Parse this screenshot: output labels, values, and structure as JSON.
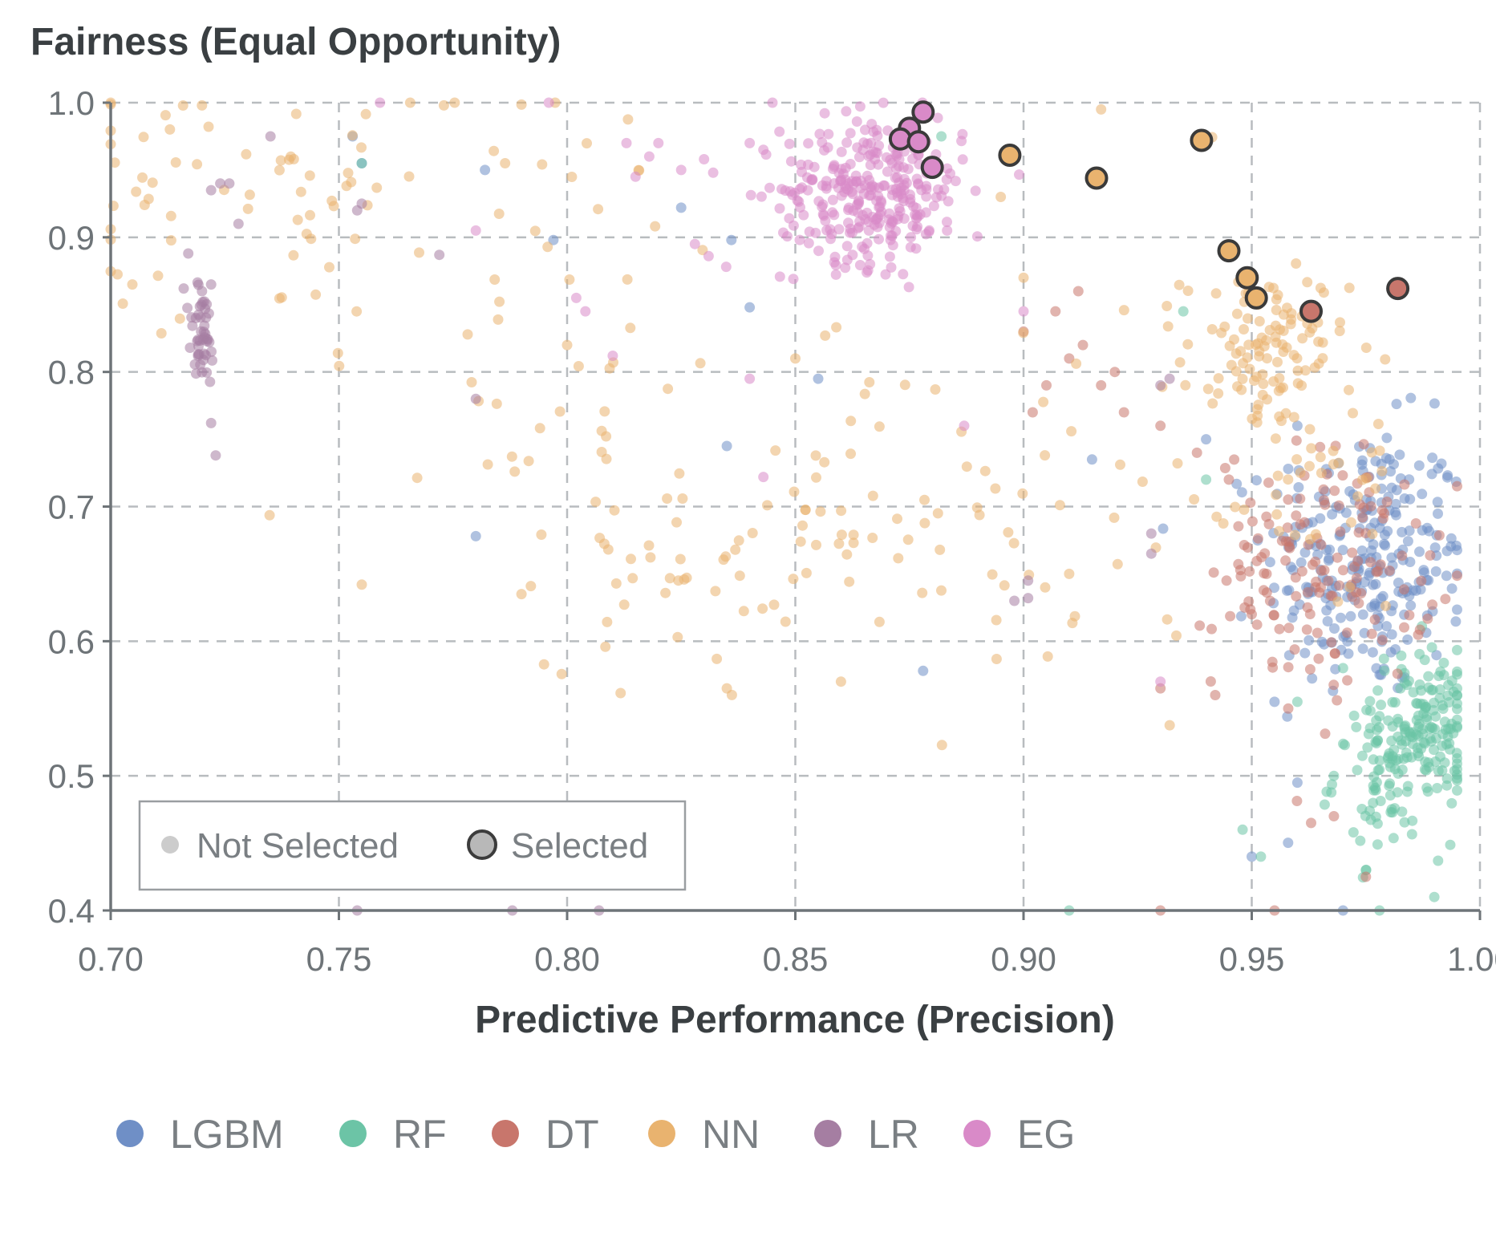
{
  "chart_data": {
    "type": "scatter",
    "title": "Fairness (Equal Opportunity)",
    "xlabel": "Predictive Performance (Precision)",
    "ylabel": "Fairness (Equal Opportunity)",
    "xlim": [
      0.7,
      1.0
    ],
    "ylim": [
      0.4,
      1.0
    ],
    "x_ticks": [
      "0.70",
      "0.75",
      "0.80",
      "0.85",
      "0.90",
      "0.95",
      "1.00"
    ],
    "y_ticks": [
      "1.0",
      "0.9",
      "0.8",
      "0.7",
      "0.6",
      "0.5",
      "0.4"
    ],
    "grid": true,
    "selection_legend": {
      "position": "bottom-left",
      "not_selected": "Not Selected",
      "selected": "Selected"
    },
    "series": [
      {
        "name": "LGBM",
        "color": "#6f8fc6",
        "clusters": [
          {
            "cx": 0.975,
            "cy": 0.66,
            "sx": 0.011,
            "sy": 0.05,
            "n": 260
          }
        ],
        "points": [
          [
            0.753,
            0.975
          ],
          [
            0.755,
            0.955
          ],
          [
            0.782,
            0.95
          ],
          [
            0.797,
            0.898
          ],
          [
            0.825,
            0.922
          ],
          [
            0.836,
            0.898
          ],
          [
            0.84,
            0.848
          ],
          [
            0.855,
            0.795
          ],
          [
            0.835,
            0.745
          ],
          [
            0.915,
            0.735
          ],
          [
            0.958,
            0.728
          ],
          [
            0.955,
            0.555
          ],
          [
            0.96,
            0.495
          ],
          [
            0.95,
            0.44
          ],
          [
            0.97,
            0.4
          ],
          [
            0.78,
            0.678
          ],
          [
            0.878,
            0.578
          ],
          [
            0.94,
            0.75
          ],
          [
            0.96,
            0.76
          ]
        ]
      },
      {
        "name": "RF",
        "color": "#6cc4a6",
        "clusters": [
          {
            "cx": 0.988,
            "cy": 0.535,
            "sx": 0.006,
            "sy": 0.03,
            "n": 150
          },
          {
            "cx": 0.98,
            "cy": 0.5,
            "sx": 0.006,
            "sy": 0.03,
            "n": 70
          }
        ],
        "points": [
          [
            0.755,
            0.955
          ],
          [
            0.882,
            0.975
          ],
          [
            0.91,
            0.4
          ],
          [
            0.94,
            0.72
          ],
          [
            0.948,
            0.46
          ],
          [
            0.952,
            0.44
          ],
          [
            0.968,
            0.5
          ],
          [
            0.975,
            0.43
          ],
          [
            0.978,
            0.4
          ],
          [
            0.99,
            0.41
          ],
          [
            0.96,
            0.555
          ],
          [
            0.97,
            0.58
          ],
          [
            0.935,
            0.845
          ]
        ]
      },
      {
        "name": "DT",
        "color": "#c8766c",
        "clusters": [
          {
            "cx": 0.966,
            "cy": 0.655,
            "sx": 0.012,
            "sy": 0.045,
            "n": 150
          }
        ],
        "points": [
          [
            0.9,
            0.83
          ],
          [
            0.907,
            0.845
          ],
          [
            0.905,
            0.79
          ],
          [
            0.91,
            0.81
          ],
          [
            0.913,
            0.82
          ],
          [
            0.92,
            0.8
          ],
          [
            0.922,
            0.77
          ],
          [
            0.93,
            0.76
          ],
          [
            0.938,
            0.74
          ],
          [
            0.945,
            0.72
          ],
          [
            0.93,
            0.4
          ],
          [
            0.93,
            0.565
          ],
          [
            0.942,
            0.56
          ],
          [
            0.95,
            0.62
          ],
          [
            0.958,
            0.55
          ],
          [
            0.963,
            0.465
          ],
          [
            0.968,
            0.47
          ],
          [
            0.975,
            0.425
          ],
          [
            0.955,
            0.4
          ],
          [
            0.912,
            0.86
          ],
          [
            0.917,
            0.79
          ],
          [
            0.902,
            0.77
          ]
        ]
      },
      {
        "name": "NN",
        "color": "#e9b36f",
        "clusters": [
          {
            "cx": 0.953,
            "cy": 0.815,
            "sx": 0.009,
            "sy": 0.03,
            "n": 110
          },
          {
            "cx": 0.82,
            "cy": 0.66,
            "sx": 0.012,
            "sy": 0.04,
            "n": 35
          },
          {
            "cx": 0.855,
            "cy": 0.67,
            "sx": 0.012,
            "sy": 0.05,
            "n": 30
          },
          {
            "cx": 0.705,
            "cy": 0.92,
            "sx": 0.008,
            "sy": 0.05,
            "n": 25
          },
          {
            "cx": 0.74,
            "cy": 0.95,
            "sx": 0.015,
            "sy": 0.04,
            "n": 30
          },
          {
            "cx": 0.9,
            "cy": 0.7,
            "sx": 0.025,
            "sy": 0.08,
            "n": 55
          },
          {
            "cx": 0.79,
            "cy": 0.85,
            "sx": 0.03,
            "sy": 0.1,
            "n": 60
          },
          {
            "cx": 0.965,
            "cy": 0.72,
            "sx": 0.01,
            "sy": 0.05,
            "n": 40
          }
        ],
        "points": [
          [
            0.72,
            0.998
          ],
          [
            0.773,
            0.998
          ],
          [
            0.8,
            0.82
          ],
          [
            0.755,
            0.642
          ],
          [
            0.79,
            0.635
          ],
          [
            0.9,
            0.87
          ],
          [
            0.91,
            0.65
          ],
          [
            0.917,
            0.995
          ],
          [
            0.895,
            0.93
          ],
          [
            0.85,
            0.81
          ],
          [
            0.835,
            0.565
          ],
          [
            0.86,
            0.57
          ]
        ]
      },
      {
        "name": "LR",
        "color": "#a57ea2",
        "clusters": [
          {
            "cx": 0.72,
            "cy": 0.825,
            "sx": 0.0016,
            "sy": 0.02,
            "n": 45
          }
        ],
        "points": [
          [
            0.722,
            0.935
          ],
          [
            0.724,
            0.94
          ],
          [
            0.726,
            0.94
          ],
          [
            0.728,
            0.91
          ],
          [
            0.735,
            0.975
          ],
          [
            0.754,
            0.92
          ],
          [
            0.755,
            0.925
          ],
          [
            0.772,
            0.887
          ],
          [
            0.717,
            0.888
          ],
          [
            0.716,
            0.862
          ],
          [
            0.723,
            0.738
          ],
          [
            0.722,
            0.762
          ],
          [
            0.78,
            0.78
          ],
          [
            0.754,
            0.4
          ],
          [
            0.788,
            0.4
          ],
          [
            0.807,
            0.4
          ],
          [
            0.898,
            0.63
          ],
          [
            0.901,
            0.645
          ],
          [
            0.901,
            0.632
          ],
          [
            0.93,
            0.79
          ],
          [
            0.932,
            0.795
          ],
          [
            0.928,
            0.665
          ],
          [
            0.928,
            0.68
          ],
          [
            0.722,
            0.865
          ],
          [
            0.72,
            0.86
          ]
        ]
      },
      {
        "name": "EG",
        "color": "#d98ac8",
        "clusters": [
          {
            "cx": 0.867,
            "cy": 0.935,
            "sx": 0.01,
            "sy": 0.027,
            "n": 300
          }
        ],
        "points": [
          [
            0.759,
            1.0
          ],
          [
            0.796,
            1.0
          ],
          [
            0.845,
            1.0
          ],
          [
            0.802,
            0.855
          ],
          [
            0.804,
            0.845
          ],
          [
            0.81,
            0.812
          ],
          [
            0.84,
            0.795
          ],
          [
            0.843,
            0.722
          ],
          [
            0.887,
            0.76
          ],
          [
            0.9,
            0.845
          ],
          [
            0.93,
            0.57
          ],
          [
            0.78,
            0.905
          ],
          [
            0.818,
            0.96
          ],
          [
            0.83,
            0.958
          ],
          [
            0.832,
            0.948
          ],
          [
            0.815,
            0.945
          ],
          [
            0.82,
            0.97
          ],
          [
            0.828,
            0.895
          ],
          [
            0.831,
            0.886
          ],
          [
            0.84,
            0.97
          ],
          [
            0.825,
            0.95
          ],
          [
            0.813,
            0.97
          ],
          [
            0.843,
            0.965
          ]
        ]
      }
    ],
    "selected_points": [
      {
        "model": "EG",
        "x": 0.878,
        "y": 0.993
      },
      {
        "model": "EG",
        "x": 0.875,
        "y": 0.981
      },
      {
        "model": "EG",
        "x": 0.873,
        "y": 0.973
      },
      {
        "model": "EG",
        "x": 0.877,
        "y": 0.971
      },
      {
        "model": "EG",
        "x": 0.88,
        "y": 0.952
      },
      {
        "model": "NN",
        "x": 0.897,
        "y": 0.961
      },
      {
        "model": "NN",
        "x": 0.916,
        "y": 0.944
      },
      {
        "model": "NN",
        "x": 0.939,
        "y": 0.972
      },
      {
        "model": "NN",
        "x": 0.945,
        "y": 0.89
      },
      {
        "model": "NN",
        "x": 0.949,
        "y": 0.87
      },
      {
        "model": "NN",
        "x": 0.951,
        "y": 0.855
      },
      {
        "model": "DT",
        "x": 0.963,
        "y": 0.845
      },
      {
        "model": "DT",
        "x": 0.982,
        "y": 0.862
      }
    ]
  },
  "model_legend": [
    {
      "label": "LGBM",
      "color": "#6f8fc6"
    },
    {
      "label": "RF",
      "color": "#6cc4a6"
    },
    {
      "label": "DT",
      "color": "#c8766c"
    },
    {
      "label": "NN",
      "color": "#e9b36f"
    },
    {
      "label": "LR",
      "color": "#a57ea2"
    },
    {
      "label": "EG",
      "color": "#d98ac8"
    }
  ]
}
